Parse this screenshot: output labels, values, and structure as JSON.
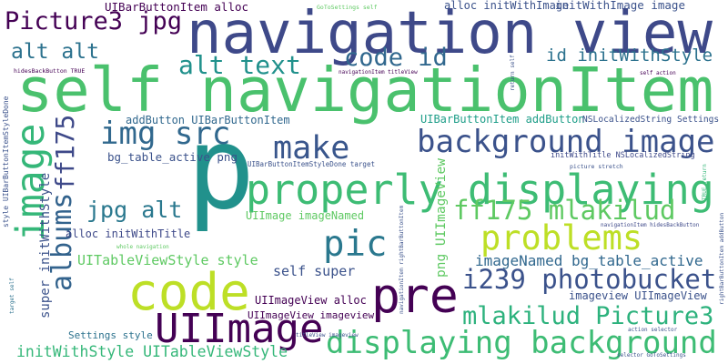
{
  "words": [
    "navigation view",
    "self navigationItem",
    "p",
    "Picture3 jpg",
    "alt alt",
    "alt text",
    "code id",
    "id initWithStyle",
    "img src",
    "make",
    "background image",
    "image",
    "ff175",
    "albums",
    "jpg alt",
    "properly displaying",
    "pic",
    "problems",
    "ff175 mlakilud",
    "code",
    "pre",
    "UIImage",
    "i239 photobucket",
    "mlakilud Picture3",
    "displaying background",
    "UITableViewStyle style",
    "self super",
    "imageNamed bg_table_active",
    "UIImage imageNamed",
    "alloc initWithTitle",
    "bg_table_active png",
    "addButton UIBarButtonItem",
    "UIBarButtonItem alloc",
    "UIBarButtonItem addButton",
    "NSLocalizedString Settings",
    "initWithTitle NSLocalizedString",
    "UIBarButtonItemStyleDone target",
    "picture stretch",
    "UIImageView alloc",
    "UIImageView imageview",
    "imageview UIImageView",
    "Settings style",
    "initWithStyle UITableViewStyle",
    "super initWithStyle",
    "png UIImageView",
    "style UIBarButtonItemStyleDone",
    "hidesBackButton TRUE",
    "GoToSettings self",
    "alloc initWithImage",
    "initWithImage image",
    "navigationItem titleView",
    "self action",
    "return self",
    "whole navigation",
    "navigationItem hidesBackButton",
    "TRUE return",
    "rightBarButtonItem addButton",
    "navigationItem rightBarButtonItem",
    "titleView imageview",
    "action selector",
    "selector GoToSettings",
    "target self"
  ]
}
